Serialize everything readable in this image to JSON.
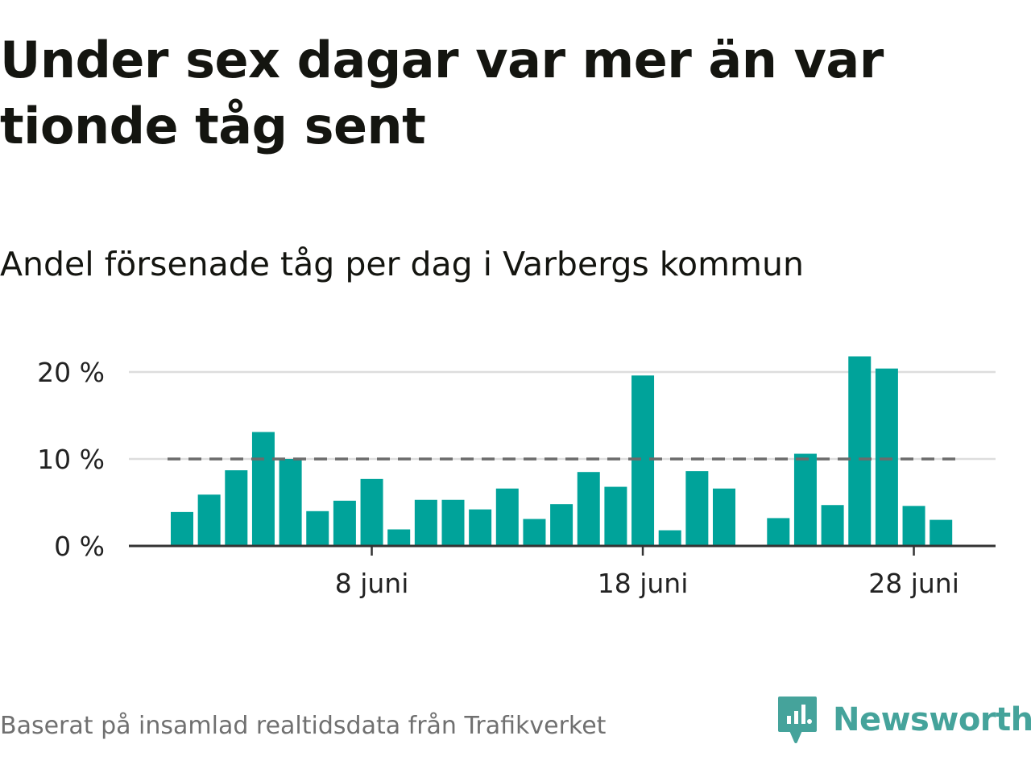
{
  "title": "Under sex dagar var mer än var tionde tåg sent",
  "subtitle": "Andel försenade tåg per dag i Varbergs kommun",
  "footer": "Baserat på insamlad realtidsdata från Trafikverket",
  "brand": {
    "name": "Newsworthy",
    "icon": "newsworthy-logo-icon",
    "color": "#45a39b"
  },
  "colors": {
    "bar": "#00a39a",
    "reference_line": "#6b6b6b",
    "grid": "#dddddd",
    "axis": "#333333"
  },
  "chart_data": {
    "type": "bar",
    "title": "",
    "xlabel": "",
    "ylabel": "",
    "x": [
      "2021-06-01",
      "2021-06-02",
      "2021-06-03",
      "2021-06-04",
      "2021-06-05",
      "2021-06-06",
      "2021-06-07",
      "2021-06-08",
      "2021-06-09",
      "2021-06-10",
      "2021-06-11",
      "2021-06-12",
      "2021-06-13",
      "2021-06-14",
      "2021-06-15",
      "2021-06-16",
      "2021-06-17",
      "2021-06-18",
      "2021-06-19",
      "2021-06-20",
      "2021-06-21",
      "2021-06-22",
      "2021-06-23",
      "2021-06-24",
      "2021-06-25",
      "2021-06-26",
      "2021-06-27",
      "2021-06-28",
      "2021-06-29"
    ],
    "values": [
      3.9,
      5.9,
      8.7,
      13.1,
      10.0,
      4.0,
      5.2,
      7.7,
      1.9,
      5.3,
      5.3,
      4.2,
      6.6,
      3.1,
      4.8,
      8.5,
      6.8,
      19.6,
      1.8,
      8.6,
      6.6,
      null,
      3.2,
      10.6,
      4.7,
      21.8,
      20.4,
      4.6,
      3.0
    ],
    "ylim": [
      0,
      22
    ],
    "y_ticks": [
      0,
      10,
      20
    ],
    "y_tick_labels": [
      "0 %",
      "10 %",
      "20 %"
    ],
    "x_ticks": [
      "2021-06-08",
      "2021-06-18",
      "2021-06-28"
    ],
    "x_tick_labels": [
      "8 juni",
      "18 juni",
      "28 juni"
    ],
    "reference_line": {
      "y": 10,
      "style": "dashed"
    },
    "grid": "horizontal",
    "legend": "none"
  }
}
